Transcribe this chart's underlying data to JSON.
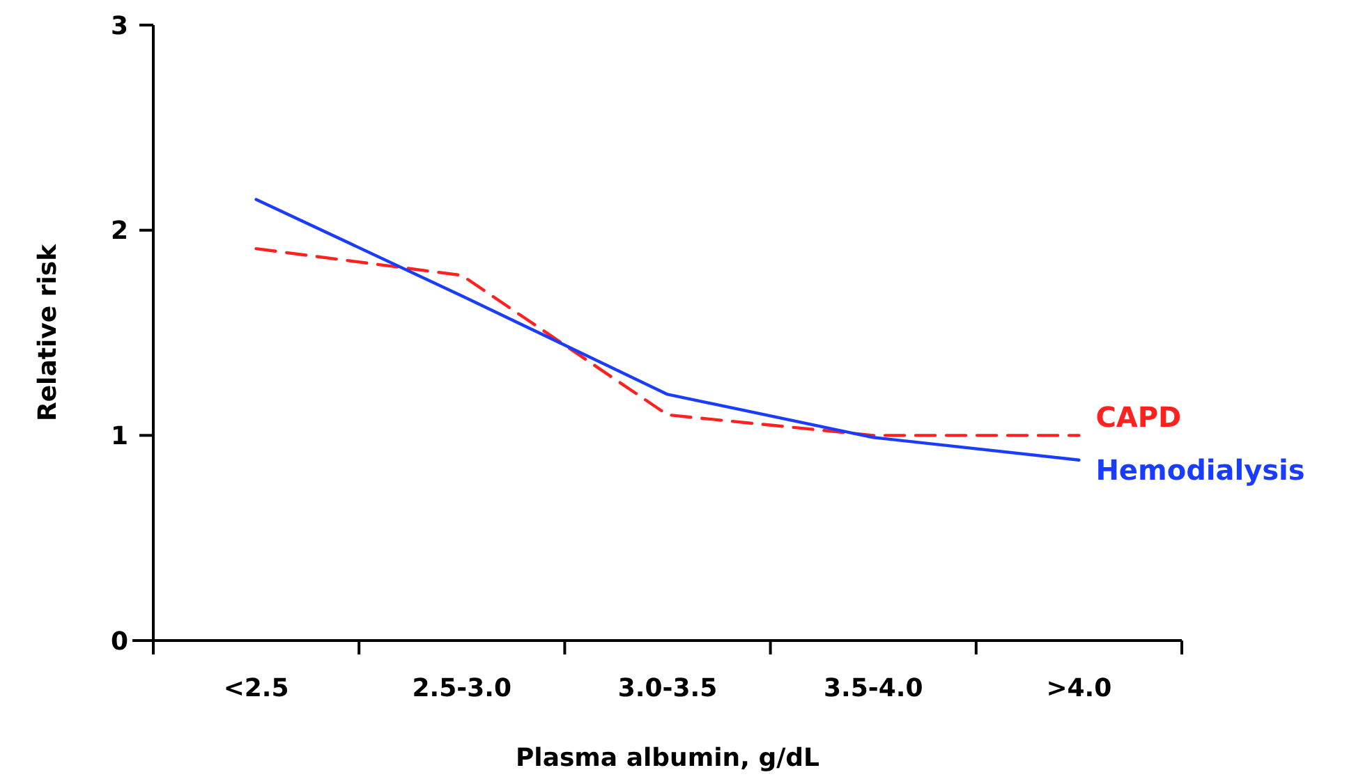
{
  "chart_data": {
    "type": "line",
    "xlabel": "Plasma albumin, g/dL",
    "ylabel": "Relative risk",
    "categories": [
      "<2.5",
      "2.5-3.0",
      "3.0-3.5",
      "3.5-4.0",
      ">4.0"
    ],
    "ylim": [
      0,
      3
    ],
    "yticks": [
      0,
      1,
      2,
      3
    ],
    "grid": false,
    "marker": "none",
    "series": [
      {
        "name": "CAPD",
        "color": "#ff2020",
        "line_style": "dashed",
        "values": [
          1.91,
          1.78,
          1.1,
          1.0,
          1.0
        ]
      },
      {
        "name": "Hemodialysis",
        "color": "#1a3cff",
        "line_style": "solid",
        "values": [
          2.15,
          1.68,
          1.2,
          0.99,
          0.88
        ]
      }
    ]
  }
}
